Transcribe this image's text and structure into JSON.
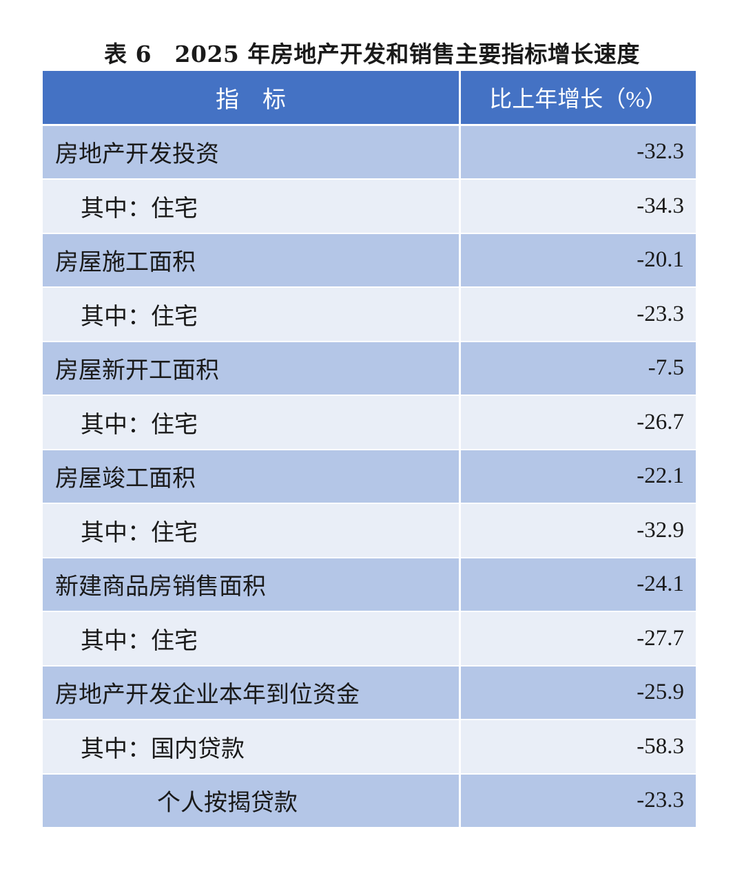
{
  "title": "表 6　2025 年房地产开发和销售主要指标增长速度",
  "header": {
    "col1": "指　标",
    "col2": "比上年增长（%）"
  },
  "colors": {
    "header": "#4472C4",
    "row_dark": "#B4C6E7",
    "row_light": "#E9EEF7"
  },
  "rows": [
    {
      "label": "房地产开发投资",
      "value": "-32.3",
      "indent": 0
    },
    {
      "label": "其中：住宅",
      "value": "-34.3",
      "indent": 1
    },
    {
      "label": "房屋施工面积",
      "value": "-20.1",
      "indent": 0
    },
    {
      "label": "其中：住宅",
      "value": "-23.3",
      "indent": 1
    },
    {
      "label": "房屋新开工面积",
      "value": "-7.5",
      "indent": 0
    },
    {
      "label": "其中：住宅",
      "value": "-26.7",
      "indent": 1
    },
    {
      "label": "房屋竣工面积",
      "value": "-22.1",
      "indent": 0
    },
    {
      "label": "其中：住宅",
      "value": "-32.9",
      "indent": 1
    },
    {
      "label": "新建商品房销售面积",
      "value": "-24.1",
      "indent": 0
    },
    {
      "label": "其中：住宅",
      "value": "-27.7",
      "indent": 1
    },
    {
      "label": "房地产开发企业本年到位资金",
      "value": "-25.9",
      "indent": 0
    },
    {
      "label": "其中：国内贷款",
      "value": "-58.3",
      "indent": 1
    },
    {
      "label": "个人按揭贷款",
      "value": "-23.3",
      "indent": 2
    }
  ]
}
